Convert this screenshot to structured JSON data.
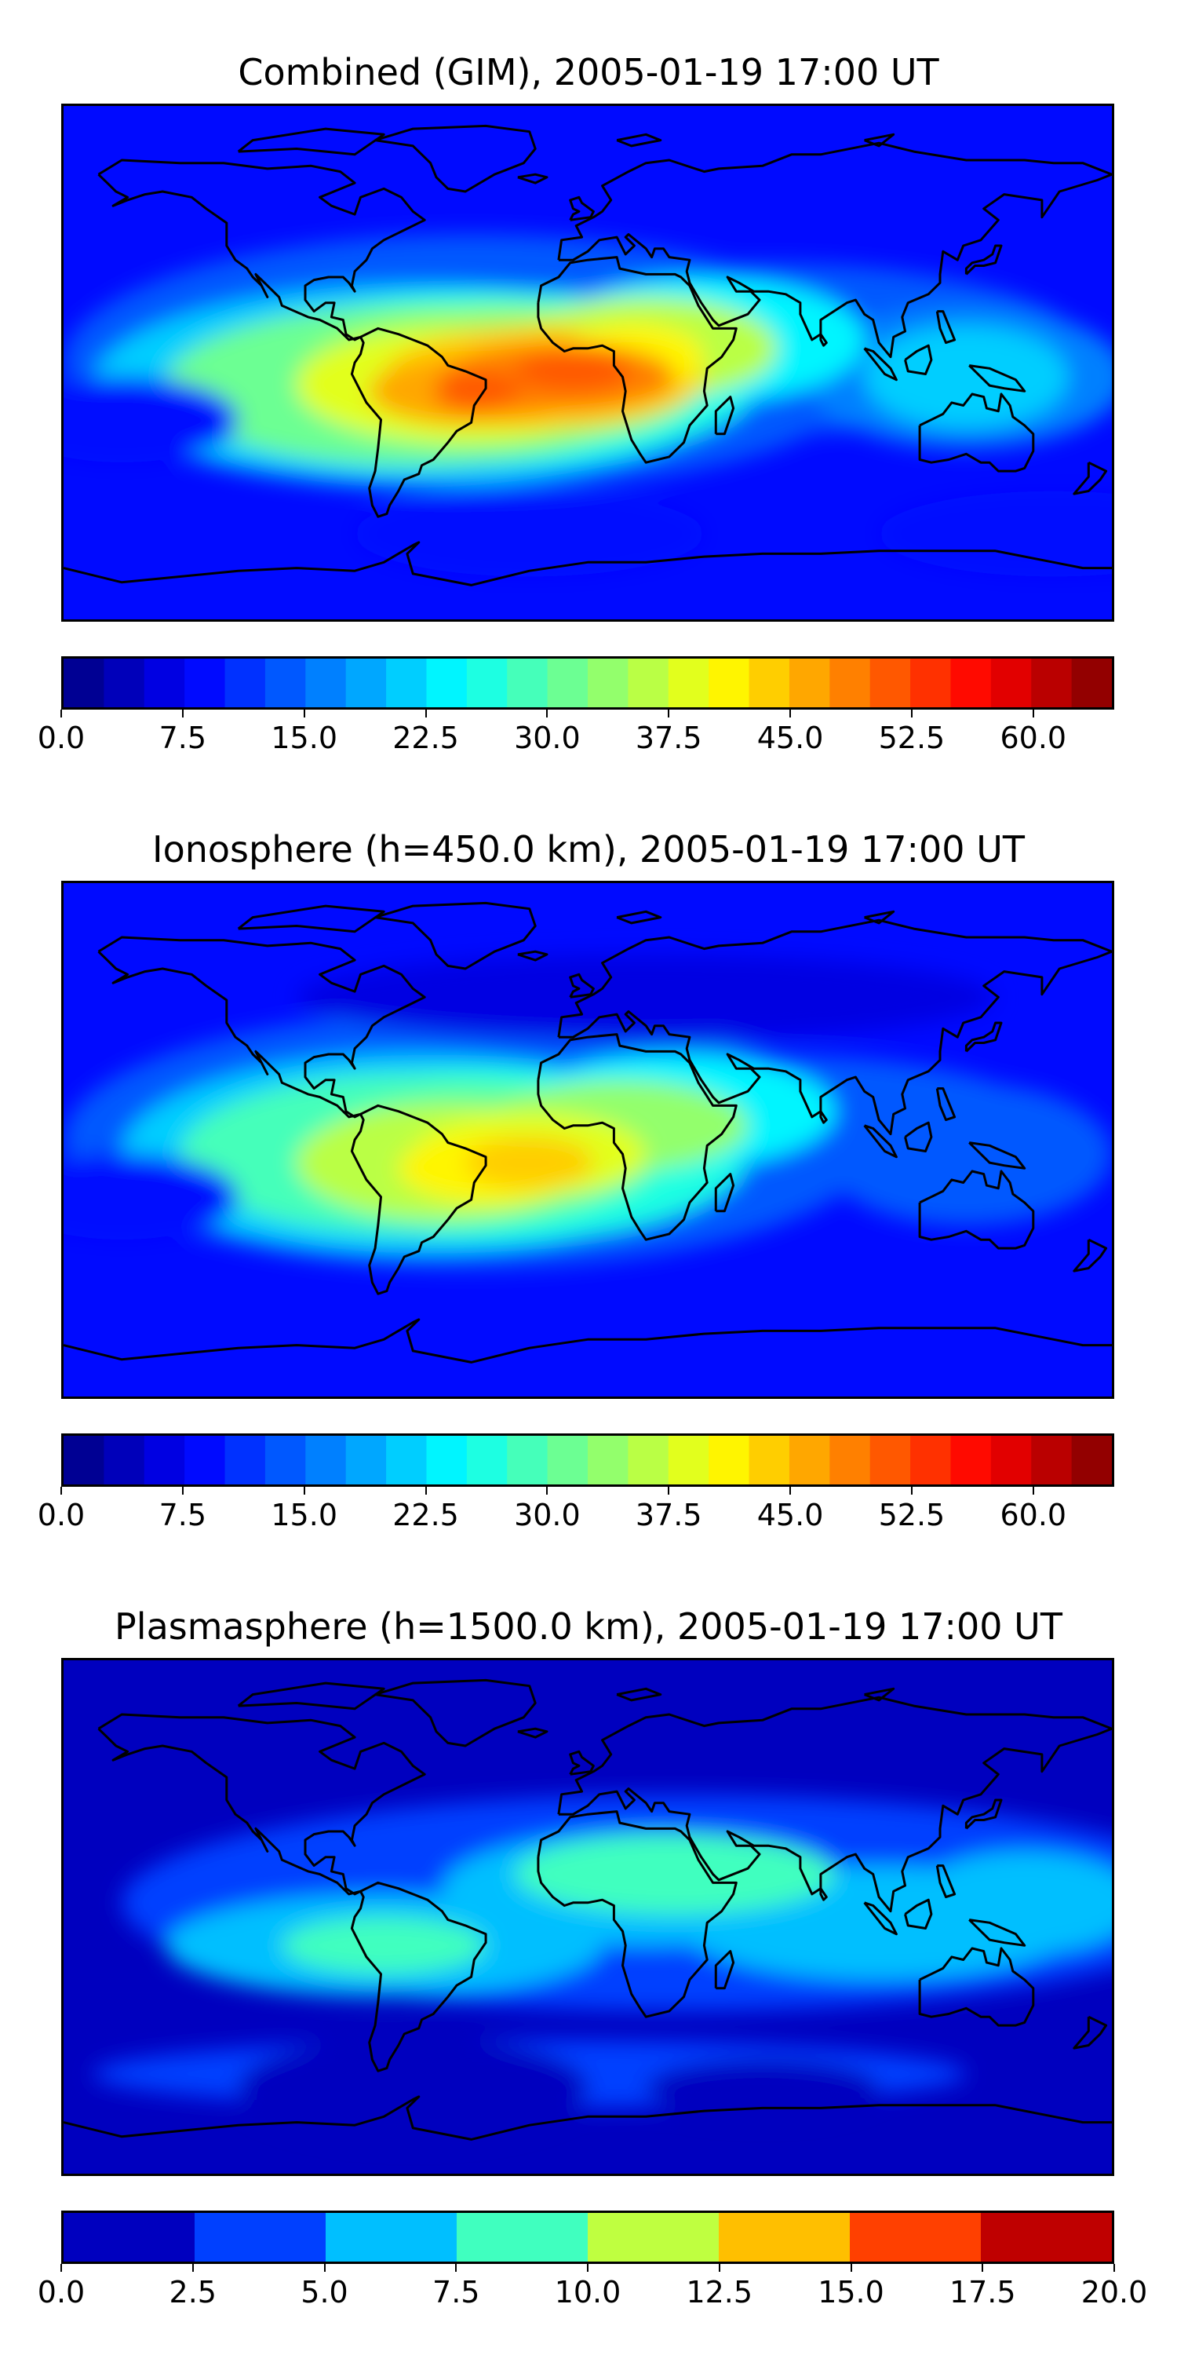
{
  "panels": [
    {
      "title": "Combined (GIM), 2005-01-19 17:00 UT",
      "colorbar": {
        "min": 0,
        "max": 65,
        "n_levels": 26,
        "tick_labels": [
          "0.0",
          "7.5",
          "15.0",
          "22.5",
          "30.0",
          "37.5",
          "45.0",
          "52.5",
          "60.0"
        ],
        "tick_values": [
          0,
          7.5,
          15,
          22.5,
          30,
          37.5,
          45,
          52.5,
          60
        ],
        "colormap": "jet"
      }
    },
    {
      "title": "Ionosphere  (h=450.0 km), 2005-01-19 17:00 UT",
      "colorbar": {
        "min": 0,
        "max": 65,
        "n_levels": 26,
        "tick_labels": [
          "0.0",
          "7.5",
          "15.0",
          "22.5",
          "30.0",
          "37.5",
          "45.0",
          "52.5",
          "60.0"
        ],
        "tick_values": [
          0,
          7.5,
          15,
          22.5,
          30,
          37.5,
          45,
          52.5,
          60
        ],
        "colormap": "jet"
      }
    },
    {
      "title": "Plasmasphere (h=1500.0 km), 2005-01-19 17:00 UT",
      "colorbar": {
        "min": 0,
        "max": 20,
        "n_levels": 8,
        "tick_labels": [
          "0.0",
          "2.5",
          "5.0",
          "7.5",
          "10.0",
          "12.5",
          "15.0",
          "17.5",
          "20.0"
        ],
        "tick_values": [
          0,
          2.5,
          5,
          7.5,
          10,
          12.5,
          15,
          17.5,
          20
        ],
        "colormap": "jet"
      }
    }
  ],
  "chart_data": [
    {
      "type": "heatmap",
      "title": "Combined (GIM), 2005-01-19 17:00 UT",
      "colorbar_range": [
        0,
        65
      ],
      "features": [
        {
          "name": "equatorial anomaly crest over South America / Atlantic",
          "lon": -35,
          "lat": -12,
          "value": 52
        },
        {
          "name": "crest over Africa",
          "lon": 10,
          "lat": -5,
          "value": 42
        },
        {
          "name": "Pacific daytime region",
          "lon": -90,
          "lat": -10,
          "value": 30
        },
        {
          "name": "background high latitude",
          "value": 5
        }
      ]
    },
    {
      "type": "heatmap",
      "title": "Ionosphere  (h=450.0 km), 2005-01-19 17:00 UT",
      "colorbar_range": [
        0,
        65
      ],
      "features": [
        {
          "name": "anomaly crest over Brazil / Atlantic",
          "lon": -30,
          "lat": -10,
          "value": 46
        },
        {
          "name": "daytime region over South America",
          "lon": -60,
          "lat": -5,
          "value": 38
        },
        {
          "name": "crest over Africa",
          "lon": 10,
          "lat": 0,
          "value": 30
        },
        {
          "name": "background high latitude",
          "value": 5
        }
      ]
    },
    {
      "type": "heatmap",
      "title": "Plasmasphere (h=1500.0 km), 2005-01-19 17:00 UT",
      "colorbar_range": [
        0,
        20
      ],
      "features": [
        {
          "name": "band over Africa / Middle East",
          "lon": 25,
          "lat": 20,
          "value": 8
        },
        {
          "name": "band over South America",
          "lon": -65,
          "lat": -10,
          "value": 8
        },
        {
          "name": "equatorial band",
          "value": 6
        },
        {
          "name": "background",
          "value": 2
        }
      ]
    }
  ]
}
